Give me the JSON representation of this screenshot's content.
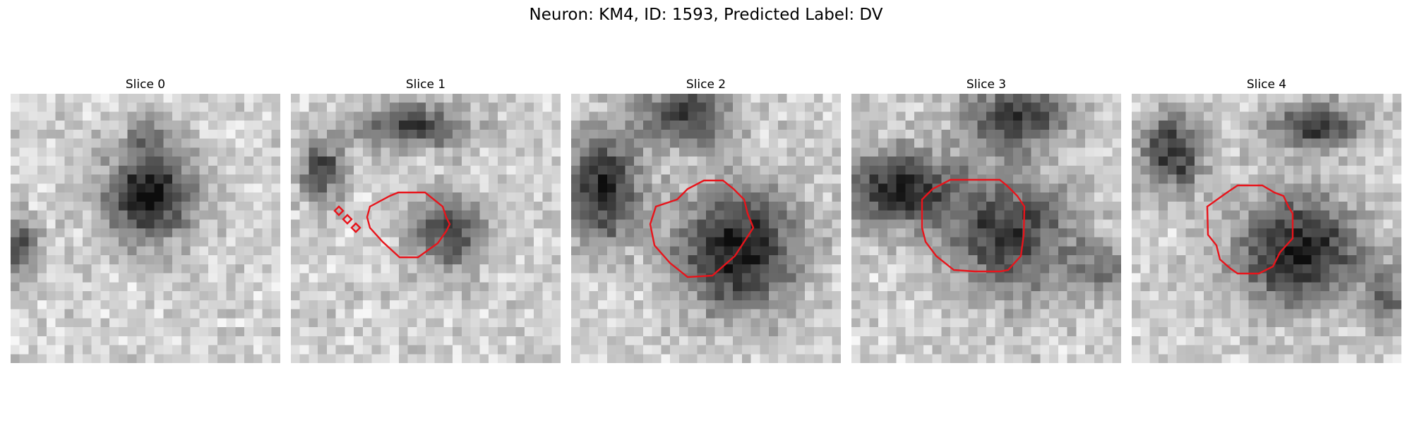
{
  "figure": {
    "title": "Neuron: KM4, ID: 1593, Predicted Label: DV"
  },
  "panels": [
    {
      "title": "Slice 0"
    },
    {
      "title": "Slice 1"
    },
    {
      "title": "Slice 2"
    },
    {
      "title": "Slice 3"
    },
    {
      "title": "Slice 4"
    }
  ],
  "contour_color": "#e8141b"
}
